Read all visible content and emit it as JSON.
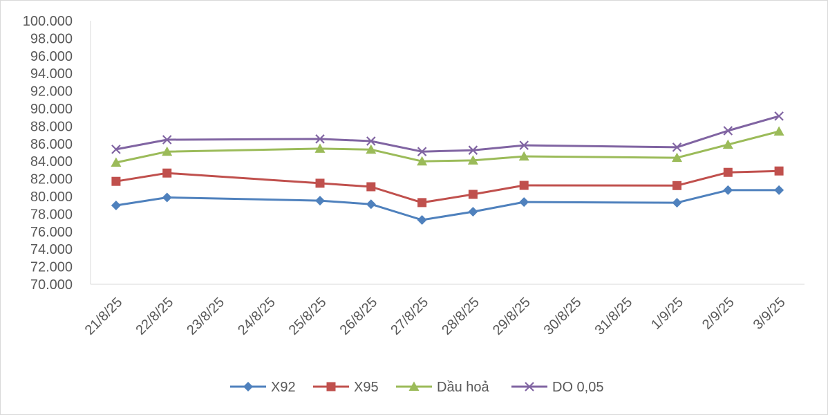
{
  "chart_data": {
    "type": "line",
    "categories": [
      "21/8/25",
      "22/8/25",
      "23/8/25",
      "24/8/25",
      "25/8/25",
      "26/8/25",
      "27/8/25",
      "28/8/25",
      "29/8/25",
      "30/8/25",
      "31/8/25",
      "1/9/25",
      "2/9/25",
      "3/9/25"
    ],
    "ylim": [
      70,
      100
    ],
    "yticks": [
      100,
      98,
      96,
      94,
      92,
      90,
      88,
      86,
      84,
      82,
      80,
      78,
      76,
      74,
      72,
      70
    ],
    "ytick_labels": [
      "100.000",
      "98.000",
      "96.000",
      "94.000",
      "92.000",
      "90.000",
      "88.000",
      "86.000",
      "84.000",
      "82.000",
      "80.000",
      "78.000",
      "76.000",
      "74.000",
      "72.000",
      "70.000"
    ],
    "grid": false,
    "legend": "bottom",
    "series": [
      {
        "name": "X92",
        "color": "#4F81BD",
        "marker": "diamond",
        "values": [
          78.98,
          79.88,
          null,
          null,
          79.52,
          79.12,
          77.32,
          78.26,
          79.36,
          null,
          null,
          79.28,
          80.72,
          80.72
        ]
      },
      {
        "name": "X95",
        "color": "#C0504D",
        "marker": "square",
        "values": [
          81.72,
          82.66,
          null,
          null,
          81.5,
          81.1,
          79.3,
          80.24,
          81.26,
          null,
          null,
          81.24,
          82.74,
          82.9
        ]
      },
      {
        "name": "Dầu hoả",
        "color": "#9BBB59",
        "marker": "triangle",
        "values": [
          83.86,
          85.1,
          null,
          null,
          85.44,
          85.34,
          84.0,
          84.1,
          84.56,
          null,
          null,
          84.4,
          85.9,
          87.4
        ]
      },
      {
        "name": "DO 0,05",
        "color": "#8064A2",
        "marker": "x",
        "values": [
          85.36,
          86.46,
          null,
          null,
          86.54,
          86.3,
          85.1,
          85.26,
          85.82,
          null,
          null,
          85.6,
          87.48,
          89.14
        ]
      }
    ]
  }
}
